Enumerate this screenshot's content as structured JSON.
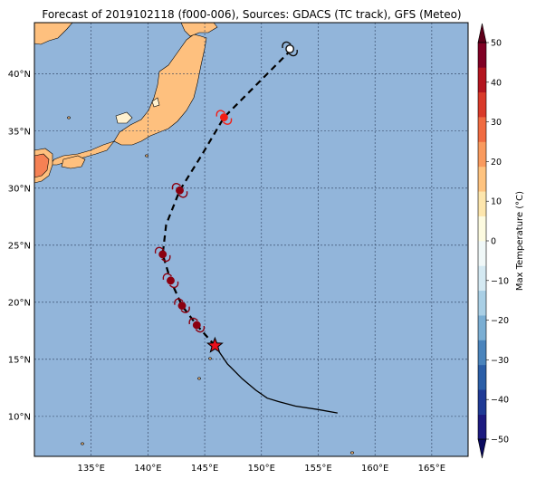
{
  "title": "Forecast of 2019102118 (f000-006), Sources: GDACS (TC track), GFS (Meteo)",
  "map": {
    "lon_range": [
      130,
      168.2
    ],
    "lat_range": [
      6.5,
      44.5
    ],
    "lon_ticks": [
      135,
      140,
      145,
      150,
      155,
      160,
      165
    ],
    "lat_ticks": [
      10,
      15,
      20,
      25,
      30,
      35,
      40
    ],
    "lon_labels": [
      "135°E",
      "140°E",
      "145°E",
      "150°E",
      "155°E",
      "160°E",
      "165°E"
    ],
    "lat_labels": [
      "10°N",
      "15°N",
      "20°N",
      "25°N",
      "30°N",
      "35°N",
      "40°N"
    ],
    "grid": true,
    "ocean_color": "#92b5da",
    "land_color_main": "#fec07e",
    "land_color_hot": "#f58154",
    "land_color_cool": "#fff1cf"
  },
  "track": {
    "past": [
      [
        156.7,
        10.3
      ],
      [
        155.0,
        10.6
      ],
      [
        153.0,
        10.9
      ],
      [
        151.5,
        11.3
      ],
      [
        150.5,
        11.6
      ],
      [
        149.5,
        12.3
      ],
      [
        148.3,
        13.3
      ],
      [
        147.0,
        14.6
      ],
      [
        145.9,
        16.2
      ]
    ],
    "forecast": [
      [
        145.9,
        16.2
      ],
      [
        144.3,
        18.0
      ],
      [
        143.0,
        19.7
      ],
      [
        142.0,
        21.9
      ],
      [
        141.3,
        24.2
      ],
      [
        141.6,
        26.8
      ],
      [
        142.8,
        29.8
      ],
      [
        144.8,
        33.0
      ],
      [
        146.7,
        36.2
      ],
      [
        149.5,
        39.0
      ],
      [
        152.5,
        42.0
      ]
    ],
    "current_position": [
      145.9,
      16.2
    ],
    "storm_symbols": [
      {
        "lon": 144.3,
        "lat": 18.0,
        "color": "#8b0010"
      },
      {
        "lon": 143.0,
        "lat": 19.7,
        "color": "#8b0010"
      },
      {
        "lon": 142.0,
        "lat": 21.9,
        "color": "#8b0010"
      },
      {
        "lon": 141.3,
        "lat": 24.2,
        "color": "#8b0010"
      },
      {
        "lon": 142.8,
        "lat": 29.8,
        "color": "#8b0010"
      },
      {
        "lon": 146.7,
        "lat": 36.2,
        "color": "#f21d14"
      },
      {
        "lon": 152.5,
        "lat": 42.2,
        "color": "#111111"
      }
    ]
  },
  "colorbar": {
    "label": "Max Temperature (°C)",
    "min": -50,
    "max": 50,
    "tick_values": [
      -50,
      -40,
      -30,
      -20,
      -10,
      0,
      10,
      20,
      30,
      40,
      50
    ],
    "tick_labels": [
      "−50",
      "−40",
      "−30",
      "−20",
      "−10",
      "0",
      "10",
      "20",
      "30",
      "40",
      "50"
    ],
    "colors": [
      "#1c1a7f",
      "#1f3a95",
      "#2b5ea7",
      "#4a84bc",
      "#7aaed3",
      "#a9cfe5",
      "#d4e9f2",
      "#f0f8f8",
      "#fdfbe0",
      "#fde6ad",
      "#fec37f",
      "#f99a5e",
      "#f06b41",
      "#d93a2a",
      "#b3151f",
      "#800024"
    ],
    "extend_low_color": "#0a0a5f",
    "extend_high_color": "#5e001a"
  }
}
